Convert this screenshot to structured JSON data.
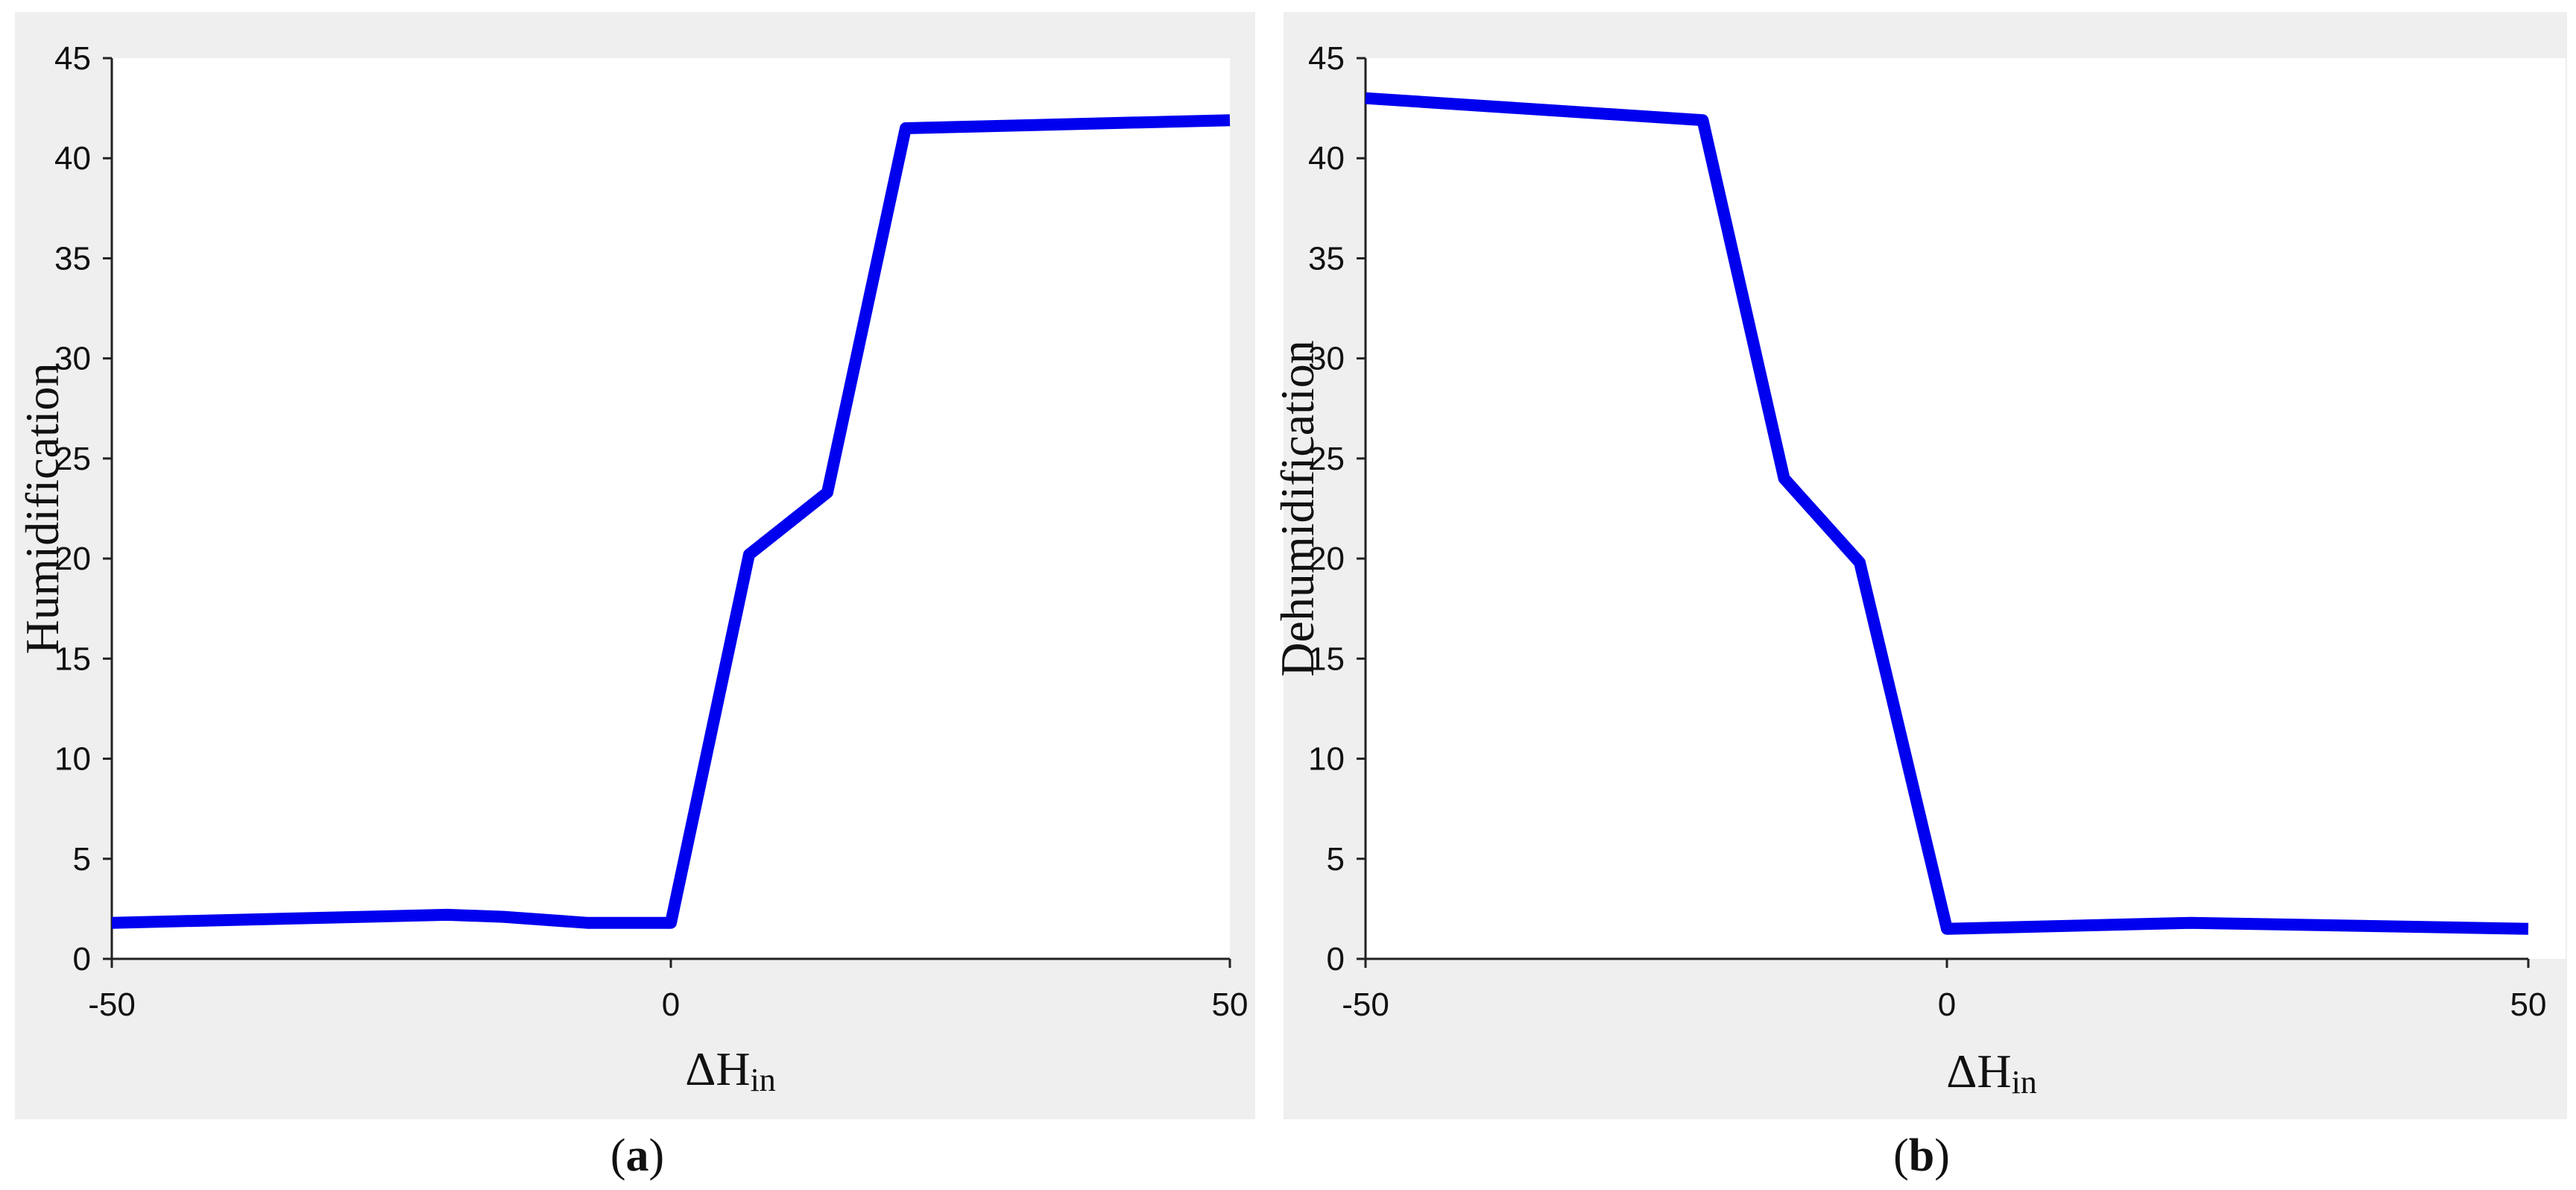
{
  "chart_data": [
    {
      "type": "line",
      "panel_label": "a",
      "xlabel_main": "ΔH",
      "xlabel_sub": "in",
      "ylabel": "Humidification",
      "xlim": [
        -50,
        50
      ],
      "ylim": [
        0,
        45
      ],
      "x_ticks": [
        -50,
        0,
        50
      ],
      "y_ticks": [
        0,
        5,
        10,
        15,
        20,
        25,
        30,
        35,
        40,
        45
      ],
      "x_tick_labels": [
        "-50",
        "0",
        "50"
      ],
      "y_tick_labels": [
        "0",
        "5",
        "10",
        "15",
        "20",
        "25",
        "30",
        "35",
        "40",
        "45"
      ],
      "grid": false,
      "series": [
        {
          "color": "#0000ee",
          "x": [
            -50,
            -20,
            -15,
            -7.5,
            0,
            7,
            14,
            21,
            50
          ],
          "y": [
            1.8,
            2.2,
            2.1,
            1.8,
            1.8,
            20.2,
            23.3,
            41.5,
            41.9
          ]
        }
      ]
    },
    {
      "type": "line",
      "panel_label": "b",
      "xlabel_main": "ΔH",
      "xlabel_sub": "in",
      "ylabel": "Dehumidification",
      "xlim": [
        -50,
        50
      ],
      "ylim": [
        0,
        45
      ],
      "x_ticks": [
        -50,
        0,
        50
      ],
      "y_ticks": [
        0,
        5,
        10,
        15,
        20,
        25,
        30,
        35,
        40,
        45
      ],
      "x_tick_labels": [
        "-50",
        "0",
        "50"
      ],
      "y_tick_labels": [
        "0",
        "5",
        "10",
        "15",
        "20",
        "25",
        "30",
        "35",
        "40",
        "45"
      ],
      "grid": false,
      "series": [
        {
          "color": "#0000ee",
          "x": [
            -50,
            -21,
            -14,
            -7.5,
            0,
            21,
            50
          ],
          "y": [
            43,
            41.9,
            24,
            19.8,
            1.5,
            1.8,
            1.5
          ]
        }
      ]
    }
  ]
}
